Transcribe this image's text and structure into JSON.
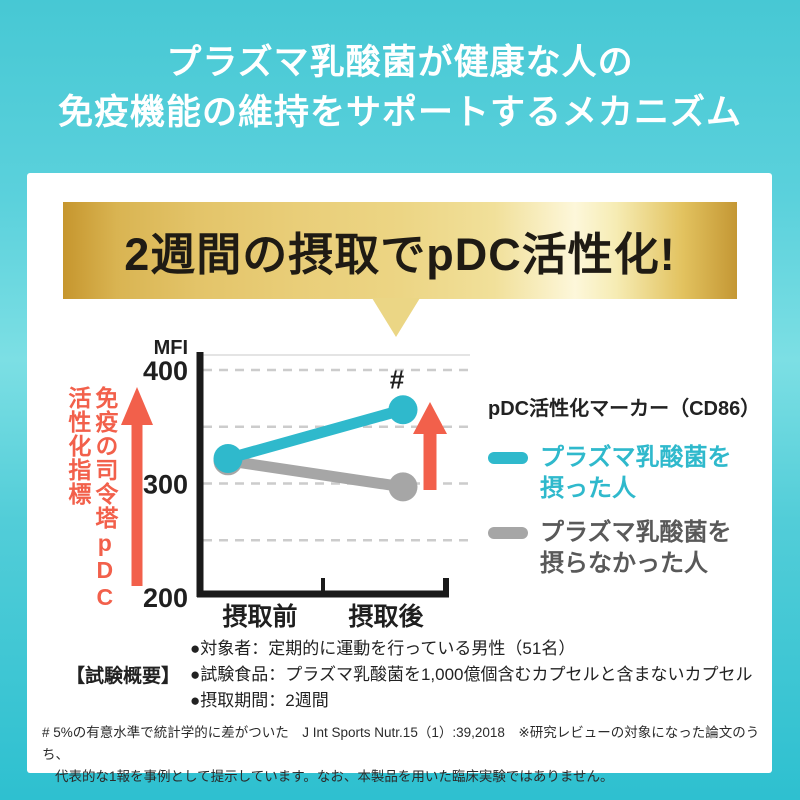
{
  "header": {
    "line1": "プラズマ乳酸菌が健康な人の",
    "line2": "免疫機能の維持をサポートするメカニズム"
  },
  "banner": {
    "text": "2週間の摂取でpDC活性化!"
  },
  "axis_indicator": {
    "line1": "免疫の司令塔pDC",
    "line2": "活性化指標"
  },
  "chart_data": {
    "type": "line",
    "unit_label": "MFI",
    "categories": [
      "摂取前",
      "摂取後"
    ],
    "series": [
      {
        "name": "プラズマ乳酸菌を摂った人",
        "color": "#2fb9cc",
        "values": [
          322,
          365
        ],
        "annotation": "#"
      },
      {
        "name": "プラズマ乳酸菌を摂らなかった人",
        "color": "#a6a6a6",
        "values": [
          320,
          297
        ]
      }
    ],
    "ylim": [
      200,
      420
    ],
    "yticks": [
      200,
      300,
      400
    ],
    "gridlines": [
      250,
      300,
      350,
      400
    ],
    "grid": "dashed-horizontal",
    "legend_title": "pDC活性化マーカー（CD86）",
    "legend_position": "right",
    "annotations": [
      "# above 摂取後 point of プラズマ乳酸菌を摂った人",
      "orange up arrow beside 摂取後 points",
      "orange up arrow beside y-axis meaning higher = more pDC activation"
    ]
  },
  "legend": {
    "title": "pDC活性化マーカー（CD86）",
    "items": [
      {
        "line1": "プラズマ乳酸菌を",
        "line2": "摂った人",
        "color": "#2fb9cc"
      },
      {
        "line1": "プラズマ乳酸菌を",
        "line2": "摂らなかった人",
        "color": "#a6a6a6"
      }
    ]
  },
  "study": {
    "label": "【試験概要】",
    "items": [
      "●対象者：定期的に運動を行っている男性（51名）",
      "●試験食品：プラズマ乳酸菌を1,000億個含むカプセルと含まないカプセル",
      "●摂取期間：2週間"
    ]
  },
  "footnote": {
    "line1": "# 5%の有意水準で統計学的に差がついた　J Int Sports Nutr.15（1）:39,2018　※研究レビューの対象になった論文のうち、",
    "line2": "代表的な1報を事例として提示しています。なお、本製品を用いた臨床実験ではありません。"
  },
  "colors": {
    "background_cyan": "#47c8d4",
    "panel_white": "#ffffff",
    "gold_banner": "#e9ce79",
    "banner_text": "#1f1b14",
    "teal_series": "#2fb9cc",
    "gray_series": "#a6a6a6",
    "orange_accent": "#f2604b",
    "dark_text": "#222222"
  }
}
